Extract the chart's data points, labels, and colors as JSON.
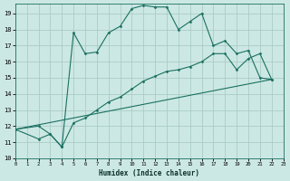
{
  "xlabel": "Humidex (Indice chaleur)",
  "bg_color": "#cce8e4",
  "grid_color": "#aaccc8",
  "line_color": "#1a7060",
  "xlim": [
    0,
    23
  ],
  "ylim": [
    10,
    19.6
  ],
  "yticks": [
    10,
    11,
    12,
    13,
    14,
    15,
    16,
    17,
    18,
    19
  ],
  "xticks": [
    0,
    1,
    2,
    3,
    4,
    5,
    6,
    7,
    8,
    9,
    10,
    11,
    12,
    13,
    14,
    15,
    16,
    17,
    18,
    19,
    20,
    21,
    22,
    23
  ],
  "curve1_x": [
    0,
    2,
    3,
    4,
    5,
    6,
    7,
    8,
    9,
    10,
    11,
    12,
    13,
    14,
    15,
    16,
    17,
    18,
    19,
    20,
    21,
    22
  ],
  "curve1_y": [
    11.8,
    12.0,
    11.5,
    10.7,
    17.8,
    16.5,
    16.6,
    17.8,
    18.2,
    19.3,
    19.5,
    19.4,
    19.4,
    18.0,
    18.5,
    19.0,
    17.0,
    17.3,
    16.5,
    16.7,
    15.0,
    14.9
  ],
  "curve2_x": [
    0,
    2,
    3,
    4,
    5,
    6,
    7,
    8,
    9,
    10,
    11,
    12,
    13,
    14,
    15,
    16,
    17,
    18,
    19,
    20,
    21,
    22
  ],
  "curve2_y": [
    11.8,
    11.2,
    11.5,
    10.7,
    12.2,
    12.5,
    13.0,
    13.5,
    13.8,
    14.3,
    14.8,
    15.1,
    15.4,
    15.5,
    15.7,
    16.0,
    16.5,
    16.5,
    15.5,
    16.2,
    16.5,
    14.9
  ],
  "line3_x": [
    0,
    22
  ],
  "line3_y": [
    11.8,
    14.9
  ]
}
